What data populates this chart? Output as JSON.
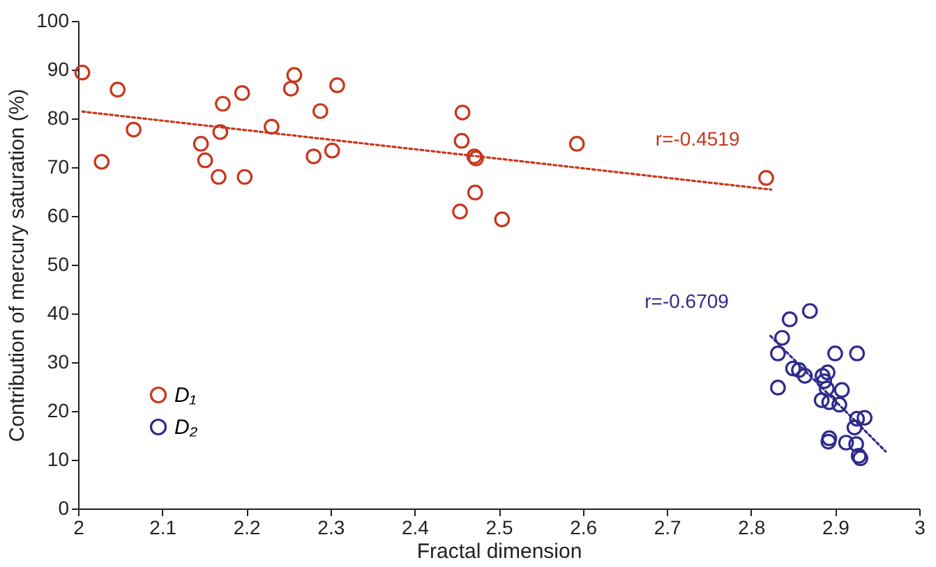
{
  "chart_data": {
    "type": "scatter",
    "xlabel": "Fractal dimension",
    "ylabel": "Contribution of mercury saturation (%)",
    "xlim": [
      2,
      3
    ],
    "ylim": [
      0,
      100
    ],
    "xticks": [
      2,
      2.1,
      2.2,
      2.3,
      2.4,
      2.5,
      2.6,
      2.7,
      2.8,
      2.9,
      3
    ],
    "yticks": [
      0,
      10,
      20,
      30,
      40,
      50,
      60,
      70,
      80,
      90,
      100
    ],
    "grid": false,
    "legend": "bottom left",
    "series": [
      {
        "name": "D₁",
        "color": "#c8361c",
        "marker": "circle",
        "x": [
          2.005,
          2.028,
          2.047,
          2.066,
          2.146,
          2.151,
          2.167,
          2.169,
          2.172,
          2.195,
          2.198,
          2.23,
          2.253,
          2.257,
          2.28,
          2.288,
          2.302,
          2.308,
          2.457,
          2.456,
          2.471,
          2.473,
          2.472,
          2.454,
          2.504,
          2.593,
          2.818
        ],
        "values": [
          89.4,
          71.1,
          85.9,
          77.7,
          74.8,
          71.4,
          68.0,
          77.2,
          83.0,
          85.2,
          68.0,
          78.3,
          86.1,
          88.9,
          72.2,
          81.5,
          73.4,
          86.8,
          81.2,
          75.4,
          72.2,
          71.8,
          64.8,
          60.9,
          59.3,
          74.8,
          67.8
        ]
      },
      {
        "name": "D₂",
        "color": "#2e2a8c",
        "marker": "circle",
        "x": [
          2.87,
          2.846,
          2.837,
          2.832,
          2.832,
          2.9,
          2.926,
          2.85,
          2.857,
          2.864,
          2.885,
          2.891,
          2.887,
          2.89,
          2.908,
          2.884,
          2.893,
          2.905,
          2.935,
          2.926,
          2.923,
          2.893,
          2.892,
          2.913,
          2.925,
          2.928,
          2.93
        ],
        "values": [
          40.5,
          38.8,
          35.0,
          31.8,
          24.8,
          31.8,
          31.8,
          28.7,
          28.4,
          27.2,
          27.2,
          27.9,
          26.1,
          24.6,
          24.3,
          22.2,
          21.8,
          21.3,
          18.6,
          18.4,
          16.6,
          14.4,
          13.7,
          13.5,
          13.2,
          10.8,
          10.3
        ]
      },
      {
        "type": "line",
        "color": "#c8361c",
        "line_style": "dotted",
        "x": [
          2.005,
          2.824
        ],
        "values": [
          81.4,
          65.4
        ]
      },
      {
        "type": "line",
        "color": "#2e2a8c",
        "line_style": "dotted",
        "x": [
          2.823,
          2.96
        ],
        "values": [
          35.4,
          11.7
        ]
      }
    ],
    "annotations": [
      {
        "text": "r=-0.4519",
        "x": 2.69,
        "y": 68.7
      },
      {
        "text": "r=-0.6709",
        "x": 2.823,
        "y": 35.4
      }
    ]
  }
}
